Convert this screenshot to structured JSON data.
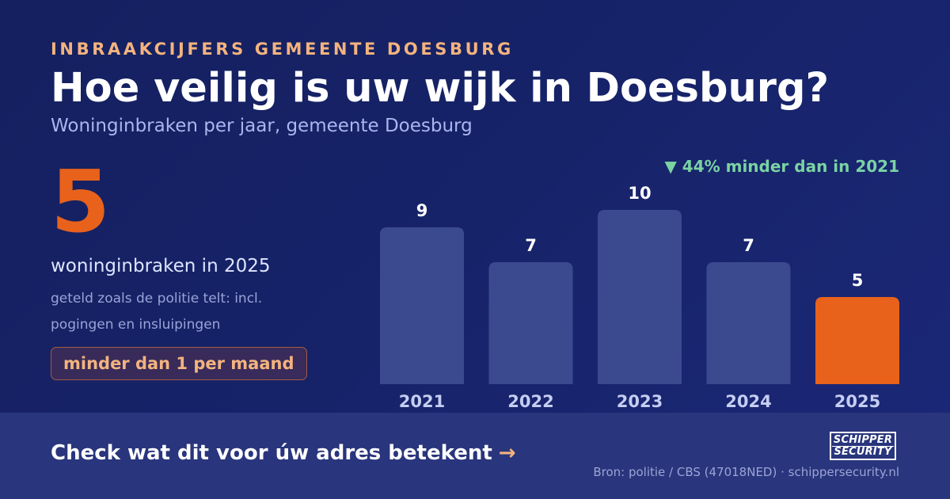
{
  "kicker": "INBRAAKCIJFERS GEMEENTE DOESBURG",
  "title": "Hoe veilig is uw wijk in Doesburg?",
  "subtitle": "Woninginbraken per jaar, gemeente Doesburg",
  "stat": {
    "value": "5",
    "label": "woninginbraken in 2025",
    "note": "geteld zoals de politie telt: incl. pogingen en insluipingen",
    "pill": "minder dan 1 per maand"
  },
  "trend": "▼ 44% minder dan in 2021",
  "footer": {
    "cta": "Check wat dit voor úw adres betekent",
    "cta_arrow": "→",
    "source": "Bron: politie / CBS (47018NED) · schippersecurity.nl",
    "logo_line1": "SCHIPPER",
    "logo_line2": "SECURITY"
  },
  "colors": {
    "bar": "#3b4a8f",
    "highlight": "#e8621b",
    "year_label": "#c5cdf2",
    "value_label": "#ffffff"
  },
  "chart_data": {
    "type": "bar",
    "categories": [
      "2021",
      "2022",
      "2023",
      "2024",
      "2025"
    ],
    "values": [
      9,
      7,
      10,
      7,
      5
    ],
    "highlight_index": 4,
    "ylim": [
      0,
      10
    ],
    "grid": false,
    "title": "",
    "xlabel": "",
    "ylabel": ""
  }
}
